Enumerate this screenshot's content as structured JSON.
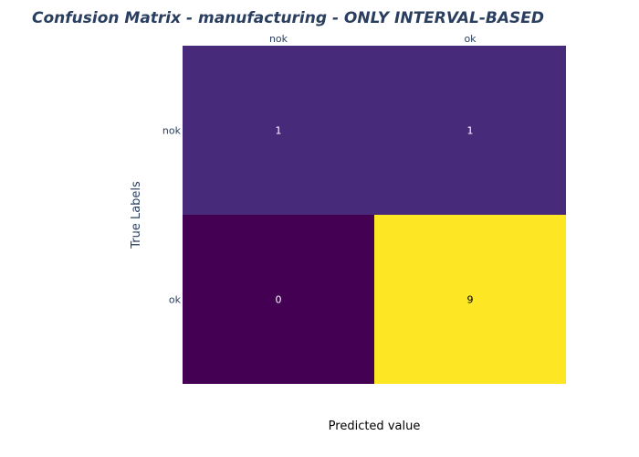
{
  "chart_data": {
    "type": "heatmap",
    "title": "Confusion Matrix - manufacturing - ONLY INTERVAL-BASED",
    "xlabel": "Predicted value",
    "ylabel": "True Labels",
    "x_categories": [
      "nok",
      "ok"
    ],
    "y_categories": [
      "nok",
      "ok"
    ],
    "values": [
      [
        1,
        1
      ],
      [
        0,
        9
      ]
    ],
    "colorscale": "viridis",
    "colors": {
      "min": "#440154",
      "low": "#482878",
      "max": "#fde725",
      "title": "#2a3f5f",
      "light_text": "#ffffff",
      "dark_text": "#000000"
    },
    "x_tick_position": "top",
    "grid": false
  }
}
